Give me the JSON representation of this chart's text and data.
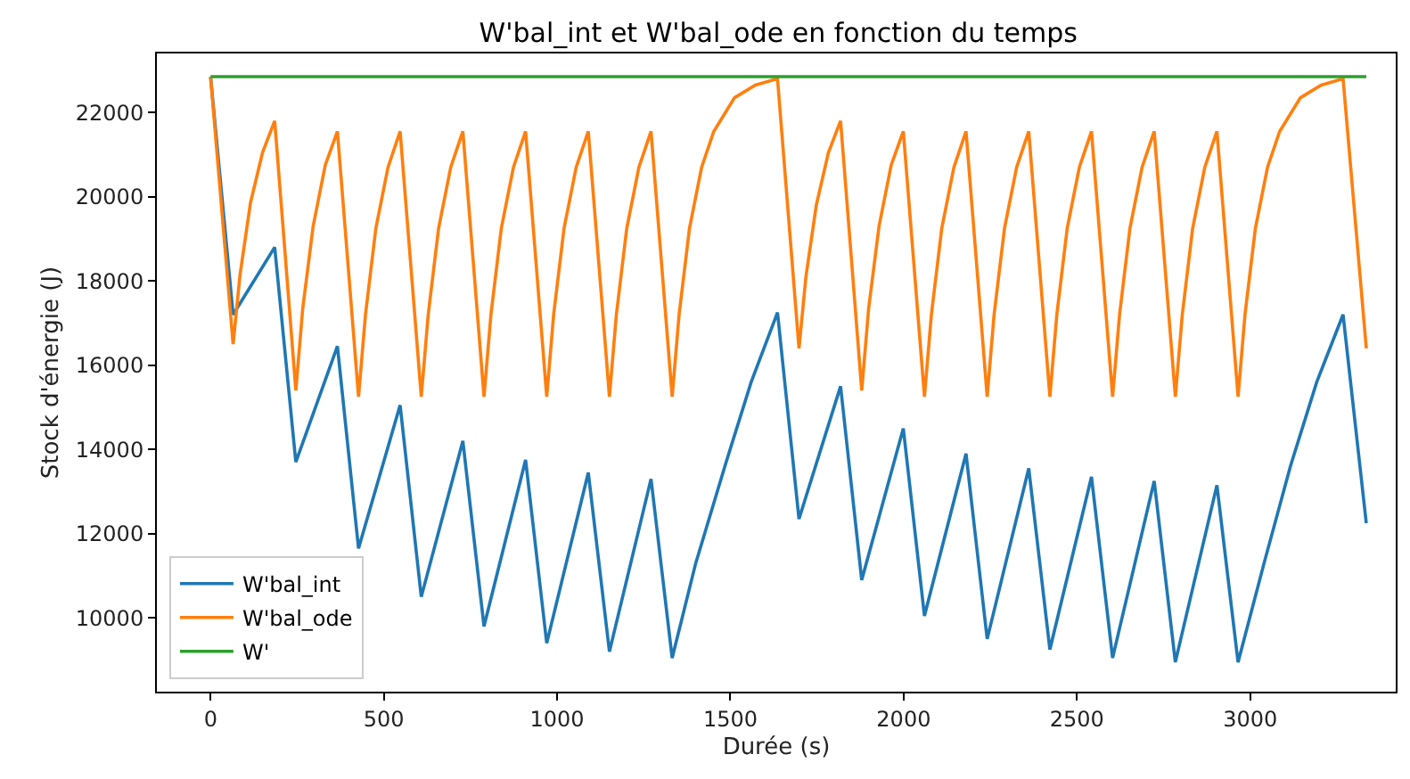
{
  "chart_data": {
    "type": "line",
    "title": "W'bal_int et W'bal_ode en fonction du temps",
    "xlabel": "Durée (s)",
    "ylabel": "Stock d'énergie (J)",
    "xlim": [
      -155,
      3420
    ],
    "ylim": [
      8250,
      23400
    ],
    "xticks": [
      0,
      500,
      1000,
      1500,
      2000,
      2500,
      3000
    ],
    "yticks": [
      10000,
      12000,
      14000,
      16000,
      18000,
      20000,
      22000
    ],
    "legend": "bottom left",
    "series": [
      {
        "name": "W'bal_int",
        "color": "#1f77b4",
        "x": [
          0,
          65,
          185,
          246,
          366,
          427,
          547,
          608,
          728,
          789,
          909,
          970,
          1090,
          1151,
          1271,
          1332,
          1400,
          1484,
          1560,
          1636,
          1698,
          1818,
          1879,
          1999,
          2060,
          2180,
          2241,
          2361,
          2422,
          2542,
          2603,
          2723,
          2784,
          2904,
          2965,
          3040,
          3116,
          3192,
          3268,
          3335
        ],
        "values": [
          22850,
          17200,
          18800,
          13700,
          16450,
          11650,
          15050,
          10500,
          14200,
          9800,
          13750,
          9400,
          13450,
          9200,
          13300,
          9050,
          11300,
          13600,
          15600,
          17250,
          12350,
          15500,
          10900,
          14500,
          10050,
          13900,
          9500,
          13550,
          9250,
          13350,
          9050,
          13250,
          8950,
          13150,
          8950,
          11300,
          13600,
          15600,
          17200,
          12250
        ]
      },
      {
        "name": "W'bal_ode",
        "color": "#ff7f0e",
        "x": [
          0,
          65,
          85,
          115,
          150,
          185,
          246,
          266,
          296,
          331,
          366,
          427,
          447,
          477,
          512,
          547,
          608,
          628,
          658,
          693,
          728,
          789,
          809,
          839,
          874,
          909,
          970,
          990,
          1020,
          1055,
          1090,
          1151,
          1171,
          1201,
          1236,
          1271,
          1332,
          1352,
          1382,
          1417,
          1452,
          1512,
          1572,
          1636,
          1698,
          1718,
          1748,
          1783,
          1818,
          1879,
          1899,
          1929,
          1964,
          1999,
          2060,
          2080,
          2110,
          2145,
          2180,
          2241,
          2261,
          2291,
          2326,
          2361,
          2422,
          2442,
          2472,
          2507,
          2542,
          2603,
          2623,
          2653,
          2688,
          2723,
          2784,
          2804,
          2834,
          2869,
          2904,
          2965,
          2985,
          3015,
          3050,
          3085,
          3145,
          3205,
          3268,
          3335
        ],
        "values": [
          22850,
          16500,
          18150,
          19850,
          21050,
          21800,
          15400,
          17350,
          19300,
          20750,
          21550,
          15250,
          17200,
          19250,
          20700,
          21550,
          15250,
          17200,
          19250,
          20700,
          21550,
          15250,
          17200,
          19250,
          20700,
          21550,
          15250,
          17200,
          19250,
          20700,
          21550,
          15250,
          17200,
          19250,
          20700,
          21550,
          15250,
          17200,
          19250,
          20700,
          21550,
          22350,
          22650,
          22800,
          16400,
          18100,
          19800,
          21050,
          21800,
          15400,
          17350,
          19300,
          20750,
          21550,
          15250,
          17200,
          19250,
          20700,
          21550,
          15250,
          17200,
          19250,
          20700,
          21550,
          15250,
          17200,
          19250,
          20700,
          21550,
          15250,
          17200,
          19250,
          20700,
          21550,
          15250,
          17200,
          19250,
          20700,
          21550,
          15250,
          17200,
          19250,
          20700,
          21550,
          22350,
          22650,
          22800,
          16400
        ]
      },
      {
        "name": "W'",
        "color": "#2ca02c",
        "x": [
          0,
          3335
        ],
        "values": [
          22850,
          22850
        ]
      }
    ]
  }
}
